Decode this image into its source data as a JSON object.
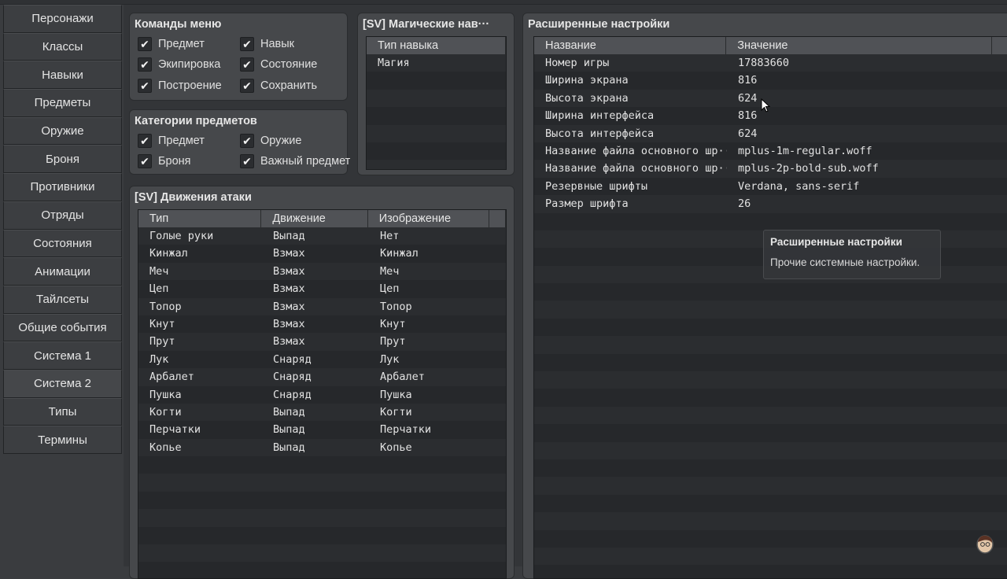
{
  "sidebar": {
    "items": [
      "Персонажи",
      "Классы",
      "Навыки",
      "Предметы",
      "Оружие",
      "Броня",
      "Противники",
      "Отряды",
      "Состояния",
      "Анимации",
      "Тайлсеты",
      "Общие события",
      "Система 1",
      "Система 2",
      "Типы",
      "Термины"
    ],
    "selected": "Система 2"
  },
  "menu_commands": {
    "title": "Команды меню",
    "items": [
      {
        "label": "Предмет",
        "checked": true
      },
      {
        "label": "Навык",
        "checked": true
      },
      {
        "label": "Экипировка",
        "checked": true
      },
      {
        "label": "Состояние",
        "checked": true
      },
      {
        "label": "Построение",
        "checked": true
      },
      {
        "label": "Сохранить",
        "checked": true
      }
    ]
  },
  "item_categories": {
    "title": "Категории предметов",
    "items": [
      {
        "label": "Предмет",
        "checked": true
      },
      {
        "label": "Оружие",
        "checked": true
      },
      {
        "label": "Броня",
        "checked": true
      },
      {
        "label": "Важный предмет",
        "checked": true
      }
    ]
  },
  "magic_skills": {
    "title": "[SV] Магические нав···",
    "header": "Тип навыка",
    "rows": [
      "Магия"
    ]
  },
  "attack_motions": {
    "title": "[SV] Движения атаки",
    "headers": [
      "Тип",
      "Движение",
      "Изображение"
    ],
    "rows": [
      [
        "Голые руки",
        "Выпад",
        "Нет"
      ],
      [
        "Кинжал",
        "Взмах",
        "Кинжал"
      ],
      [
        "Меч",
        "Взмах",
        "Меч"
      ],
      [
        "Цеп",
        "Взмах",
        "Цеп"
      ],
      [
        "Топор",
        "Взмах",
        "Топор"
      ],
      [
        "Кнут",
        "Взмах",
        "Кнут"
      ],
      [
        "Прут",
        "Взмах",
        "Прут"
      ],
      [
        "Лук",
        "Снаряд",
        "Лук"
      ],
      [
        "Арбалет",
        "Снаряд",
        "Арбалет"
      ],
      [
        "Пушка",
        "Снаряд",
        "Пушка"
      ],
      [
        "Когти",
        "Выпад",
        "Когти"
      ],
      [
        "Перчатки",
        "Выпад",
        "Перчатки"
      ],
      [
        "Копье",
        "Выпад",
        "Копье"
      ]
    ]
  },
  "advanced": {
    "title": "Расширенные настройки",
    "headers": [
      "Название",
      "Значение"
    ],
    "rows": [
      [
        "Номер игры",
        "17883660"
      ],
      [
        "Ширина экрана",
        "816"
      ],
      [
        "Высота экрана",
        "624"
      ],
      [
        "Ширина интерфейса",
        "816"
      ],
      [
        "Высота интерфейса",
        "624"
      ],
      [
        "Название файла основного шр···",
        "mplus-1m-regular.woff"
      ],
      [
        "Название файла основного шр···",
        "mplus-2p-bold-sub.woff"
      ],
      [
        "Резервные шрифты",
        "Verdana, sans-serif"
      ],
      [
        "Размер шрифта",
        "26"
      ]
    ]
  },
  "tooltip": {
    "title": "Расширенные настройки",
    "text": "Прочие системные настройки."
  },
  "icons": {
    "checkbox": "check-icon",
    "cursor": "mouse-pointer-icon",
    "avatar": "avatar-icon"
  }
}
